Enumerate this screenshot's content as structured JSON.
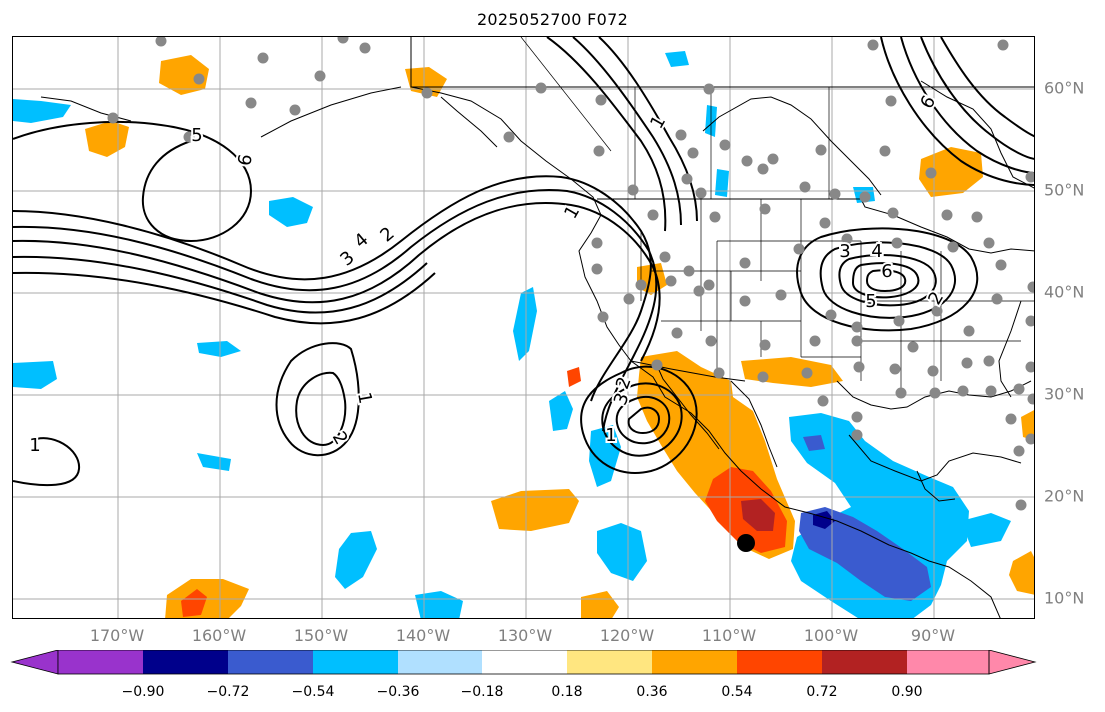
{
  "title": "2025052700 F072",
  "map": {
    "lon_labels": [
      "170°W",
      "160°W",
      "150°W",
      "140°W",
      "130°W",
      "120°W",
      "110°W",
      "100°W",
      "90°W"
    ],
    "lat_labels": [
      "60°N",
      "50°N",
      "40°N",
      "30°N",
      "20°N",
      "10°N"
    ],
    "contour_labels": [
      "1",
      "1",
      "2",
      "3",
      "4",
      "5",
      "6",
      "1",
      "2",
      "3",
      "1",
      "2",
      "3",
      "4",
      "5",
      "6",
      "1",
      "2",
      "6"
    ],
    "fill_colors": {
      "neg_090": "#9933cc",
      "neg_072": "#00008b",
      "neg_054": "#3a5bcf",
      "neg_036": "#00bfff",
      "neg_018": "#b0e0ff",
      "neutral": "#ffffff",
      "pos_018": "#ffe680",
      "pos_036": "#ffa500",
      "pos_054": "#ff4500",
      "pos_072": "#b22222",
      "pos_090": "#ff88aa"
    },
    "station_color": "#888888",
    "marker_color": "#000000"
  },
  "colorbar": {
    "ticks": [
      "−0.90",
      "−0.72",
      "−0.54",
      "−0.36",
      "−0.18",
      "0.18",
      "0.36",
      "0.54",
      "0.72",
      "0.90"
    ],
    "colors": [
      "#9933cc",
      "#00008b",
      "#3a5bcf",
      "#00bfff",
      "#b0e0ff",
      "#ffffff",
      "#ffe680",
      "#ffa500",
      "#ff4500",
      "#b22222",
      "#ff88aa"
    ]
  }
}
